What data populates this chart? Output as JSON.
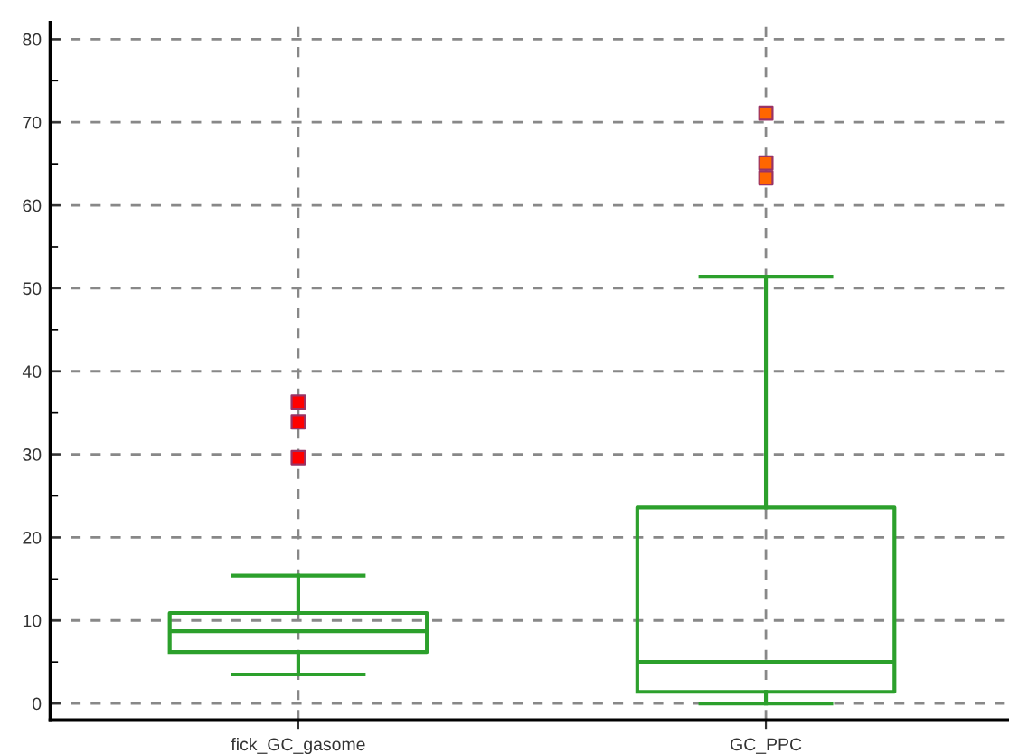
{
  "chart_data": {
    "type": "box",
    "categories": [
      "fick_GC_gasome",
      "GC_PPC"
    ],
    "boxes": [
      {
        "low": 3.5,
        "q1": 6.2,
        "median": 8.7,
        "q3": 10.9,
        "high": 15.4
      },
      {
        "low": 0,
        "q1": 1.4,
        "median": 5.0,
        "q3": 23.6,
        "high": 51.4
      }
    ],
    "color": "#2ca02c",
    "series": [
      {
        "type": "scatter",
        "color": "#ff0000",
        "x": [
          "fick_GC_gasome",
          "fick_GC_gasome",
          "fick_GC_gasome"
        ],
        "values": [
          29.6,
          33.9,
          36.3
        ]
      },
      {
        "type": "scatter",
        "color": "#ff6600",
        "x": [
          "GC_PPC",
          "GC_PPC",
          "GC_PPC"
        ],
        "values": [
          63.3,
          65.1,
          71.1
        ]
      }
    ],
    "marker": "square",
    "ylim": [
      -2,
      82
    ],
    "yticks": [
      0,
      10,
      20,
      30,
      40,
      50,
      60,
      70,
      80
    ],
    "grid": true
  }
}
